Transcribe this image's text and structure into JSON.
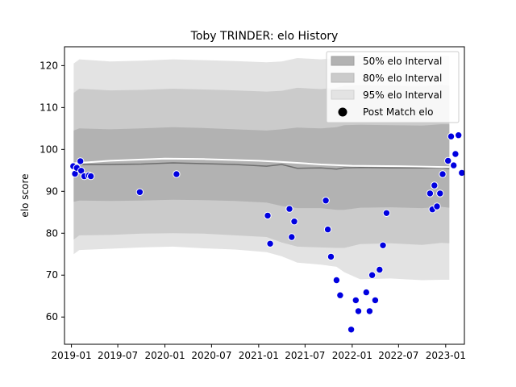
{
  "chart_data": {
    "type": "scatter",
    "title": "Toby TRINDER: elo History",
    "xlabel": "",
    "ylabel": "elo score",
    "x_ticks": [
      "2019-01",
      "2019-07",
      "2020-01",
      "2020-07",
      "2021-01",
      "2021-07",
      "2022-01",
      "2022-07",
      "2023-01"
    ],
    "y_ticks": [
      60,
      70,
      80,
      90,
      100,
      110,
      120
    ],
    "xlim": [
      "2018-12-05",
      "2023-03-15"
    ],
    "ylim": [
      53.5,
      124.5
    ],
    "grid": false,
    "legend_position": "top-right",
    "legend": [
      {
        "label": "50% elo Interval",
        "color": "#b2b2b2"
      },
      {
        "label": "80% elo Interval",
        "color": "#cbcbcb"
      },
      {
        "label": "95% elo Interval",
        "color": "#e3e3e3"
      },
      {
        "label": "Post Match elo",
        "color": "#000000"
      }
    ],
    "bands": {
      "x": [
        "2019-01-10",
        "2019-02-01",
        "2019-06-01",
        "2019-10-01",
        "2020-02-01",
        "2020-06-01",
        "2020-10-01",
        "2021-02-01",
        "2021-04-01",
        "2021-06-01",
        "2021-09-01",
        "2021-11-01",
        "2021-12-01",
        "2022-02-01",
        "2022-06-01",
        "2022-10-01",
        "2022-12-15",
        "2023-01-15"
      ],
      "upper95": [
        120.5,
        121.5,
        121,
        121.2,
        121.5,
        121.3,
        121.1,
        120.8,
        121,
        121.8,
        121.5,
        121.8,
        122.2,
        122.5,
        122.3,
        122.3,
        122.5,
        122.3
      ],
      "upper80": [
        113.5,
        114.5,
        114.1,
        114.2,
        114.5,
        114.3,
        114.1,
        113.8,
        114,
        114.7,
        114.4,
        114.7,
        115.2,
        115.3,
        115.2,
        115.1,
        115.4,
        115.2
      ],
      "upper50": [
        104.5,
        105,
        104.8,
        105,
        105.3,
        105.1,
        104.8,
        104.5,
        104.8,
        105.2,
        105,
        105.3,
        105.8,
        105.9,
        105.8,
        105.7,
        106,
        106
      ],
      "center": [
        96,
        96.4,
        96.4,
        96.5,
        96.8,
        96.6,
        96.4,
        96,
        96.4,
        95.5,
        95.6,
        95.3,
        95.6,
        95.7,
        95.6,
        95.6,
        95.7,
        95.4
      ],
      "lower50": [
        87.5,
        87.8,
        87.7,
        87.8,
        88,
        87.9,
        87.7,
        87.3,
        86.5,
        86,
        86,
        85.6,
        85.6,
        86.1,
        86.2,
        86,
        86.3,
        86.1
      ],
      "lower80": [
        78.5,
        79.5,
        79.6,
        79.9,
        80,
        79.9,
        79.5,
        79.1,
        77.8,
        76.8,
        76.6,
        76.5,
        76.5,
        77.4,
        77.6,
        77.2,
        77.7,
        77.6
      ],
      "lower95": [
        75,
        76,
        76.3,
        76.6,
        76.8,
        76.4,
        76.1,
        75.5,
        74.5,
        73,
        72.5,
        72,
        70.7,
        69,
        69.2,
        68.8,
        68.9,
        68.9
      ]
    },
    "mean_line": {
      "x": [
        "2019-01-10",
        "2019-06-01",
        "2020-01-01",
        "2020-06-01",
        "2021-01-01",
        "2021-04-01",
        "2021-06-01",
        "2021-09-01",
        "2022-01-01",
        "2022-07-01",
        "2023-01-15"
      ],
      "y": [
        96.7,
        97.3,
        97.8,
        97.7,
        97.3,
        97,
        96.8,
        96.4,
        96.1,
        96,
        95.8
      ]
    },
    "points": {
      "x": [
        "2019-01-08",
        "2019-01-15",
        "2019-01-22",
        "2019-02-05",
        "2019-02-08",
        "2019-02-20",
        "2019-03-10",
        "2019-03-18",
        "2019-09-25",
        "2020-02-15",
        "2021-02-05",
        "2021-02-15",
        "2021-05-01",
        "2021-05-10",
        "2021-05-20",
        "2021-09-20",
        "2021-09-28",
        "2021-10-10",
        "2021-11-01",
        "2021-11-15",
        "2021-12-28",
        "2022-01-15",
        "2022-01-25",
        "2022-02-25",
        "2022-03-10",
        "2022-03-20",
        "2022-04-01",
        "2022-04-18",
        "2022-05-01",
        "2022-05-15",
        "2022-11-01",
        "2022-11-10",
        "2022-11-18",
        "2022-11-28",
        "2022-12-10",
        "2022-12-20",
        "2023-01-10",
        "2023-01-22",
        "2023-02-01",
        "2023-02-08",
        "2023-02-20",
        "2023-03-05"
      ],
      "y": [
        96,
        94.2,
        95.6,
        97.2,
        94.9,
        93.6,
        93.8,
        93.6,
        89.8,
        94.1,
        84.2,
        77.5,
        85.8,
        79.1,
        82.8,
        87.8,
        80.9,
        74.4,
        68.8,
        65.2,
        57,
        64,
        61.4,
        65.9,
        61.4,
        70,
        64,
        71.3,
        77.1,
        84.8,
        89.5,
        85.7,
        91.4,
        86.4,
        89.5,
        94.1,
        97.3,
        103.1,
        96.2,
        98.9,
        103.4,
        94.4
      ]
    }
  }
}
